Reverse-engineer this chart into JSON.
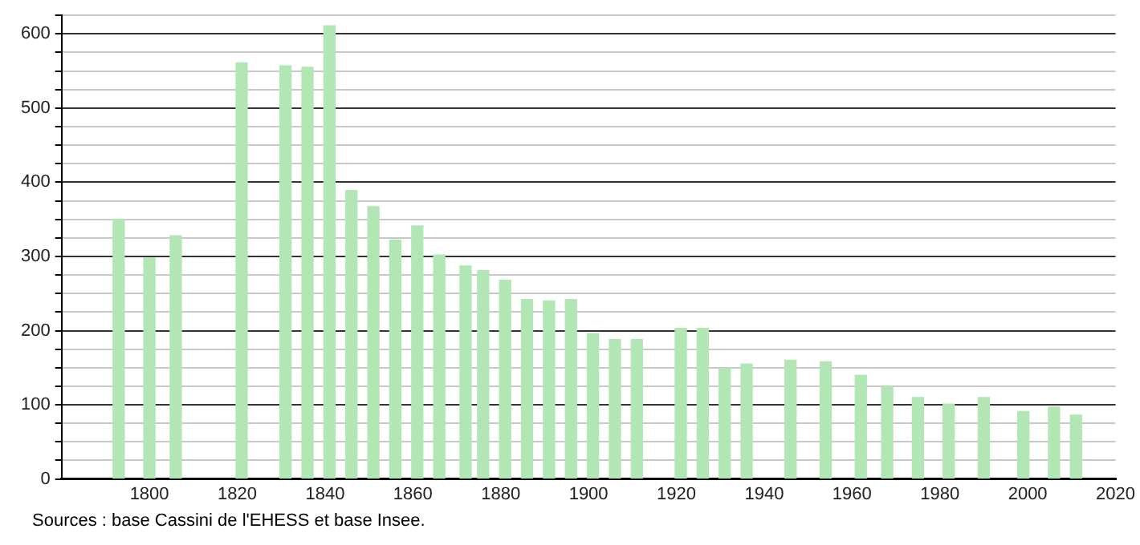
{
  "chart_data": {
    "type": "bar",
    "x": [
      1793,
      1800,
      1806,
      1821,
      1831,
      1836,
      1841,
      1846,
      1851,
      1856,
      1861,
      1866,
      1872,
      1876,
      1881,
      1886,
      1891,
      1896,
      1901,
      1906,
      1911,
      1921,
      1926,
      1931,
      1936,
      1946,
      1954,
      1962,
      1968,
      1975,
      1982,
      1990,
      1999,
      2006,
      2011
    ],
    "values": [
      350,
      298,
      328,
      561,
      557,
      555,
      611,
      389,
      367,
      322,
      341,
      302,
      287,
      281,
      268,
      242,
      240,
      242,
      196,
      188,
      188,
      203,
      203,
      149,
      155,
      160,
      158,
      140,
      125,
      110,
      101,
      110,
      91,
      97,
      86
    ],
    "color": "#b3e6b5",
    "xlim": [
      1780,
      2020
    ],
    "xticks": [
      1800,
      1820,
      1840,
      1860,
      1880,
      1900,
      1920,
      1940,
      1960,
      1980,
      2000,
      2020
    ],
    "ylim": [
      0,
      625
    ],
    "yticks": [
      0,
      {
        "value": 25,
        "label": null
      },
      {
        "value": 50,
        "label": null
      },
      {
        "value": 75,
        "label": null
      },
      100,
      {
        "value": 125,
        "label": null
      },
      {
        "value": 150,
        "label": null
      },
      {
        "value": 175,
        "label": null
      },
      200,
      {
        "value": 225,
        "label": null
      },
      {
        "value": 250,
        "label": null
      },
      {
        "value": 275,
        "label": null
      },
      300,
      {
        "value": 325,
        "label": null
      },
      {
        "value": 350,
        "label": null
      },
      {
        "value": 375,
        "label": null
      },
      400,
      {
        "value": 425,
        "label": null
      },
      {
        "value": 450,
        "label": null
      },
      {
        "value": 475,
        "label": null
      },
      500,
      {
        "value": 525,
        "label": null
      },
      {
        "value": 550,
        "label": null
      },
      {
        "value": 575,
        "label": null
      },
      600,
      {
        "value": 625,
        "label": null
      }
    ],
    "grid": "y",
    "legend": false,
    "annotations": [
      "Sources : base Cassini de l'EHESS et base Insee."
    ]
  }
}
